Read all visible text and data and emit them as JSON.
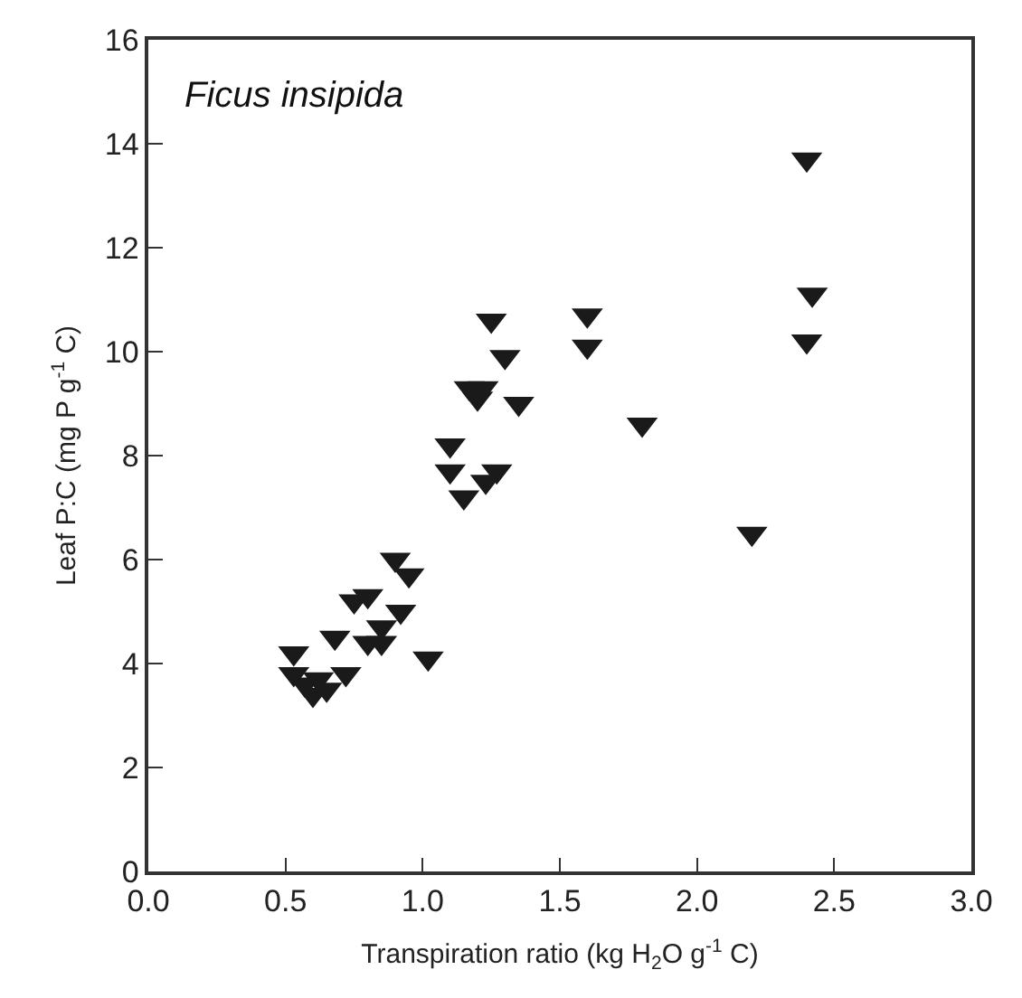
{
  "chart_data": {
    "type": "scatter",
    "xlabel": "Transpiration ratio (kg H$_{2}$O g$^{-1}$ C)",
    "ylabel": "Leaf P:C (mg P g$^{-1}$ C)",
    "annotations": [
      "Ficus insipida"
    ],
    "x": [
      0.53,
      0.53,
      0.57,
      0.6,
      0.62,
      0.65,
      0.68,
      0.72,
      0.75,
      0.8,
      0.8,
      0.85,
      0.85,
      0.9,
      0.92,
      0.95,
      1.02,
      1.1,
      1.1,
      1.15,
      1.17,
      1.2,
      1.22,
      1.25,
      1.23,
      1.27,
      1.3,
      1.35,
      1.6,
      1.6,
      1.8,
      2.2,
      2.4,
      2.42,
      2.4
    ],
    "values": [
      4.2,
      3.8,
      3.6,
      3.4,
      3.7,
      3.5,
      4.5,
      3.8,
      5.2,
      5.3,
      4.4,
      4.7,
      4.4,
      6.0,
      5.0,
      5.7,
      4.1,
      8.2,
      7.7,
      7.2,
      9.3,
      9.1,
      9.3,
      10.6,
      7.5,
      7.7,
      9.9,
      9.0,
      10.7,
      10.1,
      8.6,
      6.5,
      13.7,
      11.1,
      10.2
    ],
    "color": "#1a1a1a",
    "marker": "triangle",
    "grid": false,
    "legend": false,
    "xlim": [
      0,
      3
    ],
    "xticks": [
      {
        "value": 0,
        "label": "0.0"
      },
      0.5,
      {
        "value": 1,
        "label": "1.0"
      },
      1.5,
      {
        "value": 2,
        "label": "2.0"
      },
      2.5,
      {
        "value": 3,
        "label": "3.0"
      }
    ],
    "ylim": [
      0,
      16
    ],
    "yticks": [
      0,
      2,
      4,
      6,
      8,
      10,
      12,
      14,
      16
    ]
  }
}
